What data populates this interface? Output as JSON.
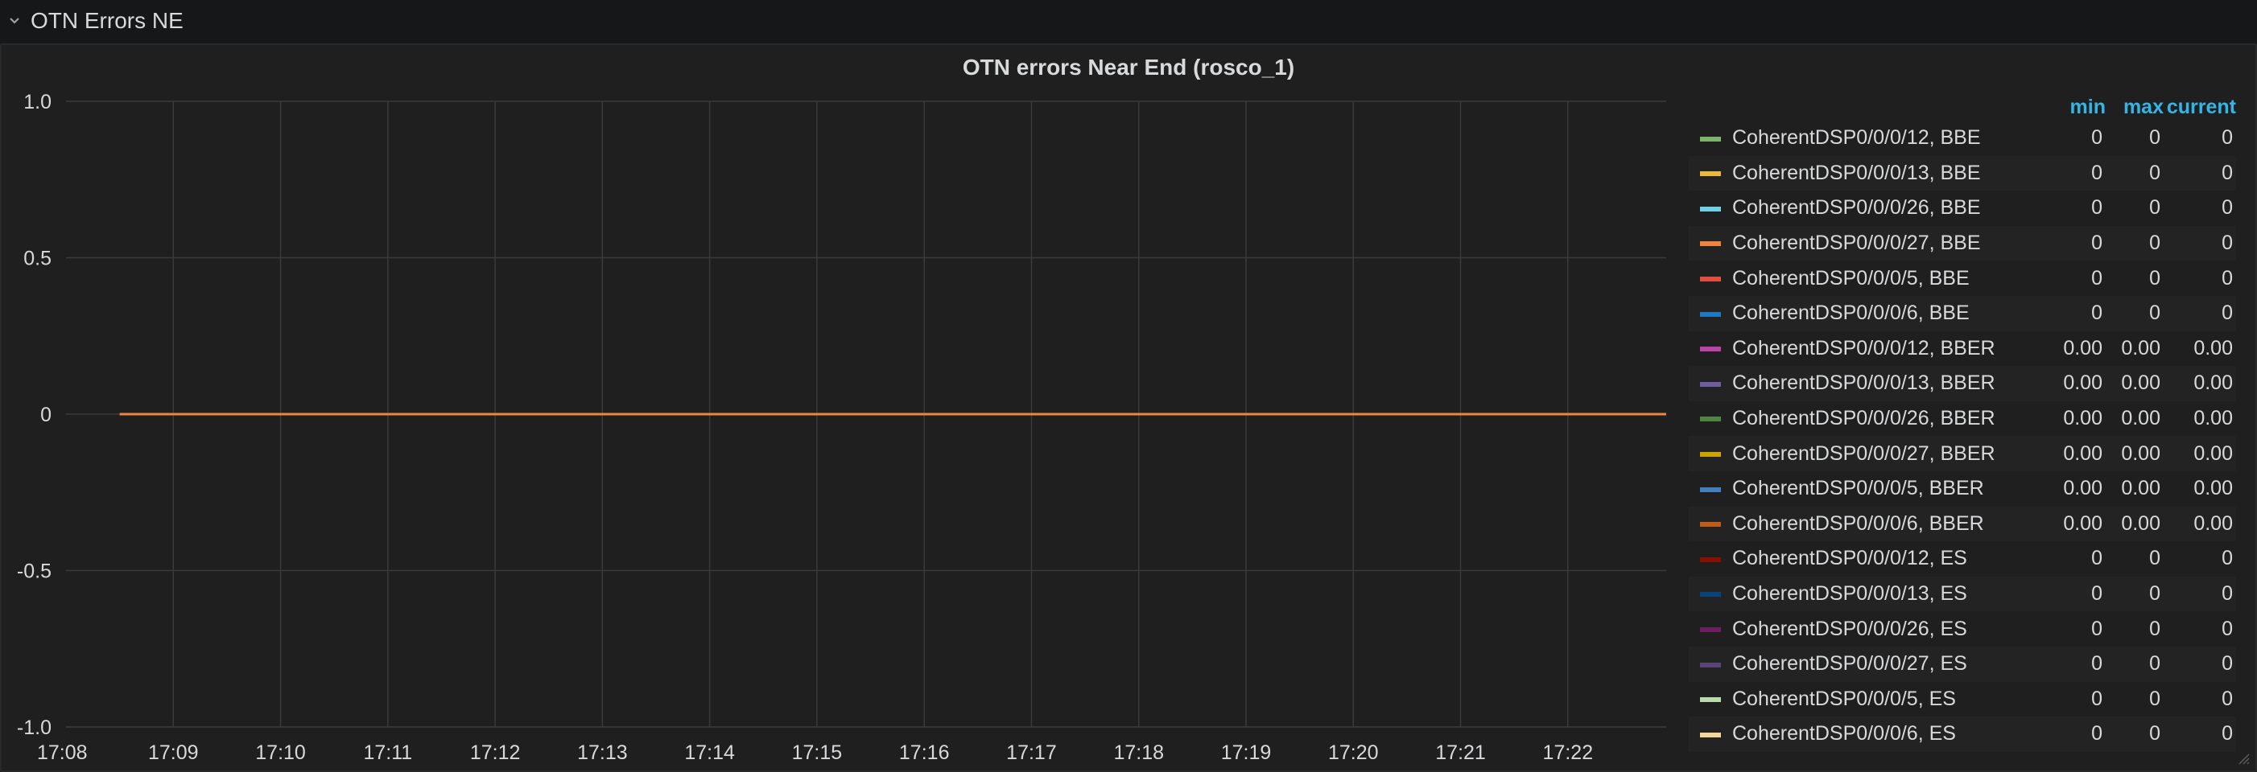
{
  "row": {
    "title": "OTN Errors NE",
    "chevron_icon": "chevron-down-icon"
  },
  "panel": {
    "title": "OTN errors Near End (rosco_1)",
    "resize_icon": "resize-corner-icon"
  },
  "legend": {
    "columns": [
      "min",
      "max",
      "current"
    ],
    "header_color": "#33b5e5",
    "rows": [
      {
        "name": "CoherentDSP0/0/0/12, BBE",
        "color": "#7eb26d",
        "min": "0",
        "max": "0",
        "current": "0"
      },
      {
        "name": "CoherentDSP0/0/0/13, BBE",
        "color": "#eab839",
        "min": "0",
        "max": "0",
        "current": "0"
      },
      {
        "name": "CoherentDSP0/0/0/26, BBE",
        "color": "#6ed0e0",
        "min": "0",
        "max": "0",
        "current": "0"
      },
      {
        "name": "CoherentDSP0/0/0/27, BBE",
        "color": "#ef843c",
        "min": "0",
        "max": "0",
        "current": "0"
      },
      {
        "name": "CoherentDSP0/0/0/5, BBE",
        "color": "#e24d42",
        "min": "0",
        "max": "0",
        "current": "0"
      },
      {
        "name": "CoherentDSP0/0/0/6, BBE",
        "color": "#1f78c1",
        "min": "0",
        "max": "0",
        "current": "0"
      },
      {
        "name": "CoherentDSP0/0/0/12, BBER",
        "color": "#ba43a9",
        "min": "0.00",
        "max": "0.00",
        "current": "0.00"
      },
      {
        "name": "CoherentDSP0/0/0/13, BBER",
        "color": "#705da0",
        "min": "0.00",
        "max": "0.00",
        "current": "0.00"
      },
      {
        "name": "CoherentDSP0/0/0/26, BBER",
        "color": "#508642",
        "min": "0.00",
        "max": "0.00",
        "current": "0.00"
      },
      {
        "name": "CoherentDSP0/0/0/27, BBER",
        "color": "#cca300",
        "min": "0.00",
        "max": "0.00",
        "current": "0.00"
      },
      {
        "name": "CoherentDSP0/0/0/5, BBER",
        "color": "#447ebc",
        "min": "0.00",
        "max": "0.00",
        "current": "0.00"
      },
      {
        "name": "CoherentDSP0/0/0/6, BBER",
        "color": "#c15c17",
        "min": "0.00",
        "max": "0.00",
        "current": "0.00"
      },
      {
        "name": "CoherentDSP0/0/0/12, ES",
        "color": "#890f02",
        "min": "0",
        "max": "0",
        "current": "0"
      },
      {
        "name": "CoherentDSP0/0/0/13, ES",
        "color": "#0a437c",
        "min": "0",
        "max": "0",
        "current": "0"
      },
      {
        "name": "CoherentDSP0/0/0/26, ES",
        "color": "#6d1f62",
        "min": "0",
        "max": "0",
        "current": "0"
      },
      {
        "name": "CoherentDSP0/0/0/27, ES",
        "color": "#584477",
        "min": "0",
        "max": "0",
        "current": "0"
      },
      {
        "name": "CoherentDSP0/0/0/5, ES",
        "color": "#b7dbab",
        "min": "0",
        "max": "0",
        "current": "0"
      },
      {
        "name": "CoherentDSP0/0/0/6, ES",
        "color": "#f4d598",
        "min": "0",
        "max": "0",
        "current": "0"
      }
    ]
  },
  "chart_data": {
    "type": "line",
    "title": "OTN errors Near End (rosco_1)",
    "xlabel": "",
    "ylabel": "",
    "ylim": [
      -1.0,
      1.0
    ],
    "yticks": [
      "1.0",
      "0.5",
      "0",
      "-0.5",
      "-1.0"
    ],
    "ytick_values": [
      1.0,
      0.5,
      0,
      -0.5,
      -1.0
    ],
    "xticks": [
      "17:08",
      "17:09",
      "17:10",
      "17:11",
      "17:12",
      "17:13",
      "17:14",
      "17:15",
      "17:16",
      "17:17",
      "17:18",
      "17:19",
      "17:20",
      "17:21",
      "17:22"
    ],
    "xlim": [
      "17:08",
      "17:22:55"
    ],
    "grid": true,
    "legend_placement": "right",
    "series": [
      {
        "name": "CoherentDSP0/0/0/27, BBE",
        "color": "#ef843c",
        "x": [
          "17:08:30",
          "17:22:55"
        ],
        "y": [
          0,
          0
        ]
      }
    ]
  }
}
